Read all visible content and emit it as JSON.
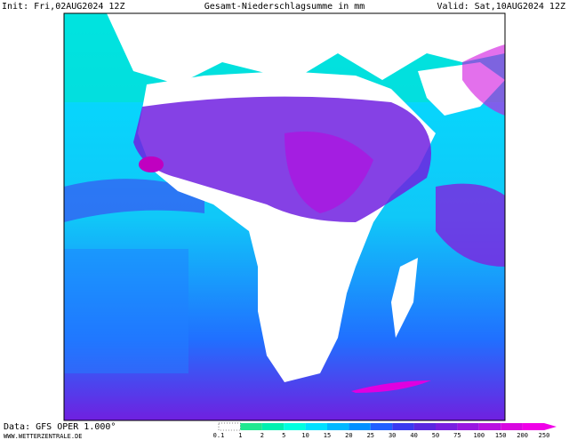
{
  "header": {
    "init": "Init: Fri,02AUG2024 12Z",
    "title": "Gesamt-Niederschlagsumme in mm",
    "valid": "Valid: Sat,10AUG2024 12Z"
  },
  "footer": {
    "source": "Data: GFS OPER 1.000°",
    "website": "WWW.WETTERZENTRALE.DE"
  },
  "colorbar": {
    "labels": [
      "0.1",
      "1",
      "2",
      "5",
      "10",
      "15",
      "20",
      "25",
      "30",
      "40",
      "50",
      "75",
      "100",
      "150",
      "200",
      "250"
    ],
    "colors": [
      "#ffffff",
      "#20e890",
      "#00f0b0",
      "#00ffe0",
      "#00e0ff",
      "#00b8ff",
      "#0090ff",
      "#2060ff",
      "#3a3af0",
      "#5a28e0",
      "#7820e0",
      "#9818e0",
      "#b810e0",
      "#d808e0",
      "#f000e8"
    ]
  }
}
